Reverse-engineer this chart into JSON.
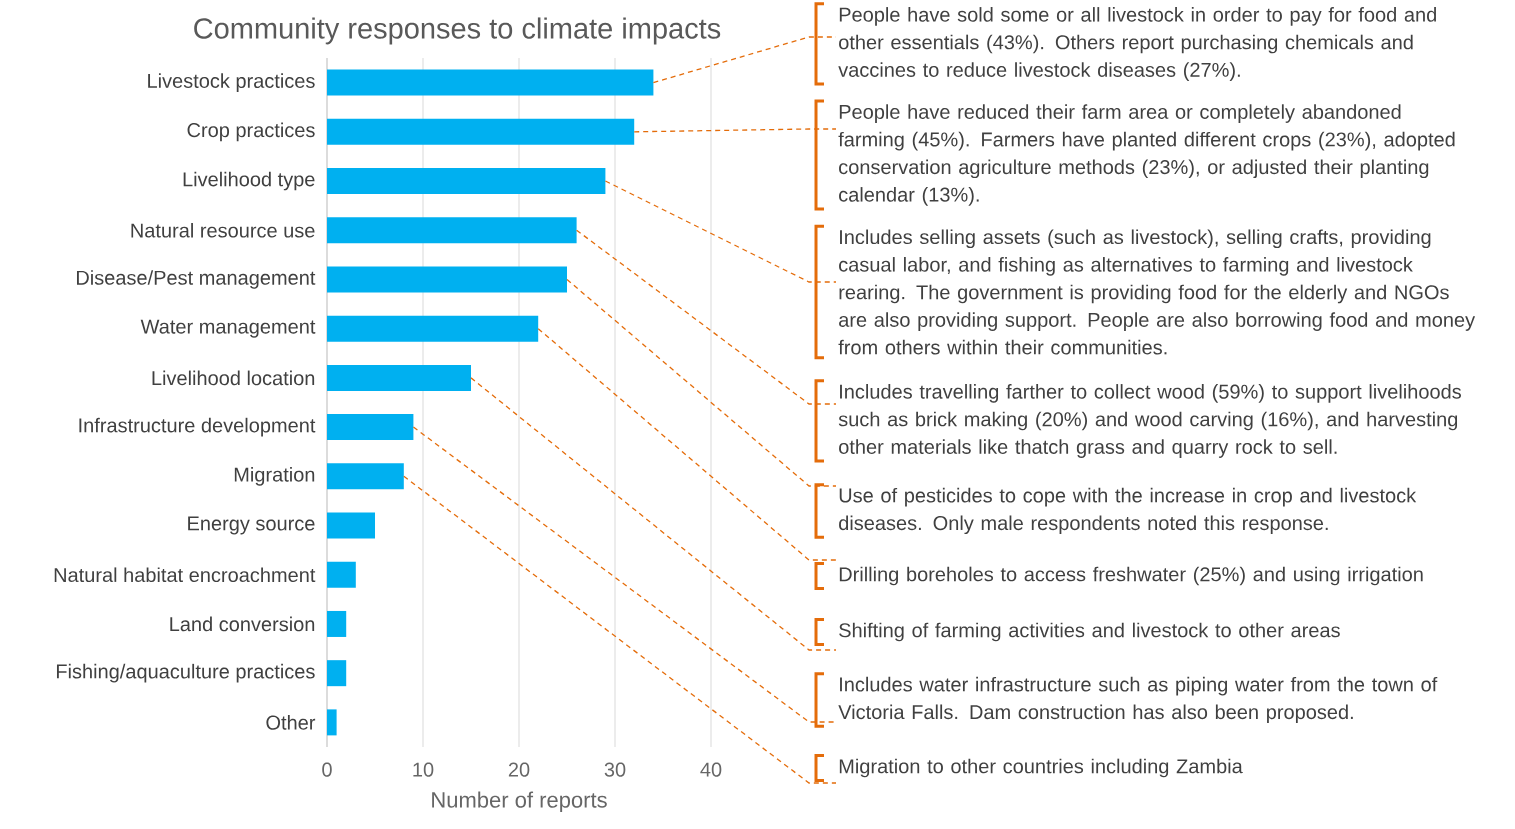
{
  "chart_data": {
    "type": "bar",
    "orientation": "horizontal",
    "title": "Community responses to climate impacts",
    "xlabel": "Number of reports",
    "categories": [
      "Livestock practices",
      "Crop practices",
      "Livelihood type",
      "Natural resource use",
      "Disease/Pest management",
      "Water management",
      "Livelihood location",
      "Infrastructure development",
      "Migration",
      "Energy source",
      "Natural habitat encroachment",
      "Land conversion",
      "Fishing/aquaculture practices",
      "Other"
    ],
    "values": [
      34,
      32,
      29,
      26,
      25,
      22,
      15,
      9,
      8,
      5,
      3,
      2,
      2,
      1
    ],
    "color": "#00b0f0",
    "xlim": [
      0,
      40
    ],
    "xticks": [
      0,
      10,
      20,
      30,
      40
    ],
    "grid": "x",
    "annotations": [
      {
        "text": "People have sold some or all livestock in order to pay for food and other essentials (43%). Others report purchasing chemicals and vaccines to reduce livestock diseases (27%).",
        "x": 34,
        "y": "Livestock practices"
      },
      {
        "text": "People have reduced their farm area or completely abandoned farming (45%). Farmers have planted different crops (23%), adopted conservation agriculture methods (23%), or adjusted their planting calendar (13%).",
        "x": 32,
        "y": "Crop practices"
      },
      {
        "text": "Includes selling assets (such as livestock), selling crafts, providing casual labor, and fishing as alternatives to farming and livestock rearing. The government is providing food for the elderly and NGOs are also providing support. People are also borrowing food and money from others within their communities.",
        "x": 29,
        "y": "Livelihood type"
      },
      {
        "text": "Includes travelling farther to collect wood (59%) to support livelihoods such as brick making (20%) and wood carving (16%), and harvesting other materials like thatch grass and quarry rock to sell.",
        "x": 26,
        "y": "Natural resource use"
      },
      {
        "text": "Use of pesticides to cope with the increase in crop and livestock diseases. Only male respondents noted this response.",
        "x": 25,
        "y": "Disease/Pest management"
      },
      {
        "text": "Drilling boreholes to access freshwater (25%) and using irrigation",
        "x": 22,
        "y": "Water management"
      },
      {
        "text": "Shifting of farming activities and livestock to other areas",
        "x": 15,
        "y": "Livelihood location"
      },
      {
        "text": "Includes water infrastructure such as piping water from the town of Victoria Falls. Dam construction has also been proposed.",
        "x": 9,
        "y": "Infrastructure development"
      },
      {
        "text": "Migration to other countries including Zambia",
        "x": 8,
        "y": "Migration"
      }
    ]
  }
}
